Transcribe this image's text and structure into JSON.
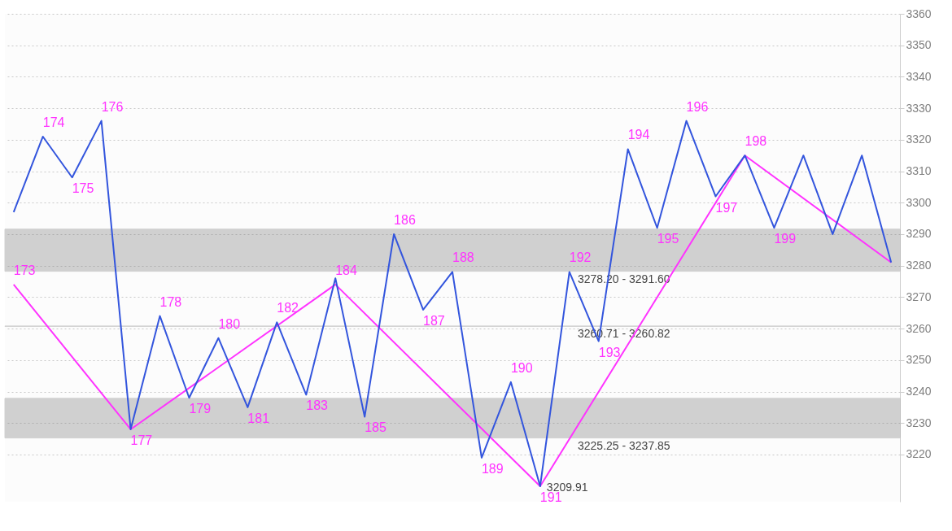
{
  "chart_data": {
    "type": "line",
    "tick_labels": "y",
    "grid": "y",
    "marker": "none",
    "line_style": "solid",
    "categories": [
      null,
      null,
      null,
      null,
      null,
      null,
      null,
      null,
      null,
      null,
      null,
      null,
      null,
      null,
      null,
      null,
      null,
      null,
      null,
      null,
      null,
      null,
      null,
      null,
      null,
      null,
      null,
      null,
      null,
      null,
      null
    ],
    "ylim": [
      3205,
      3360
    ],
    "yticks": [
      3220,
      3230,
      3240,
      3250,
      3260,
      3270,
      3280,
      3290,
      3300,
      3310,
      3320,
      3330,
      3340,
      3350,
      3360
    ],
    "series": [
      {
        "color": "#ff33ff",
        "values": [
          3274,
          null,
          null,
          null,
          3228,
          null,
          null,
          null,
          null,
          null,
          null,
          3274,
          null,
          null,
          null,
          null,
          null,
          null,
          3209.91,
          null,
          null,
          null,
          null,
          null,
          null,
          3315,
          null,
          null,
          null,
          null,
          3281
        ],
        "value_labels": [
          null,
          null,
          null,
          null,
          null,
          null,
          null,
          null,
          null,
          null,
          null,
          null,
          null,
          null,
          null,
          null,
          null,
          null,
          "3209.91",
          null,
          null,
          null,
          null,
          null,
          null,
          null,
          null,
          null,
          null,
          null,
          null
        ]
      },
      {
        "color": "#3355dd",
        "values": [
          3297,
          3321,
          3308,
          3326,
          3228,
          3264,
          3238,
          3257,
          3235,
          3262,
          3239,
          3276,
          3232,
          3290,
          3266,
          3278,
          3219,
          3243,
          3209.91,
          3278,
          3256,
          3317,
          3292,
          3326,
          3302,
          3315,
          3292,
          3315,
          3290,
          3315,
          3281
        ]
      }
    ],
    "annotations": [
      "173",
      "174",
      "175",
      "176",
      "177",
      "178",
      "179",
      "180",
      "181",
      "182",
      "183",
      "184",
      "185",
      "186",
      "187",
      "188",
      "189",
      "190",
      "191",
      "192",
      "193",
      "194",
      "195",
      "196",
      "197",
      "198",
      "199"
    ],
    "bands": [
      {
        "axis": "y",
        "from": 3225.25,
        "to": 3237.85,
        "label": "3225.25 - 3237.85",
        "color": "#808080"
      },
      {
        "axis": "y",
        "from": 3278.2,
        "to": 3291.6,
        "label": "3278.20 - 3291.60",
        "color": "#808080"
      },
      {
        "axis": "y",
        "from": 3260.71,
        "to": 3260.82,
        "label": "3260.71 - 3260.82",
        "color": "#808080"
      }
    ]
  }
}
